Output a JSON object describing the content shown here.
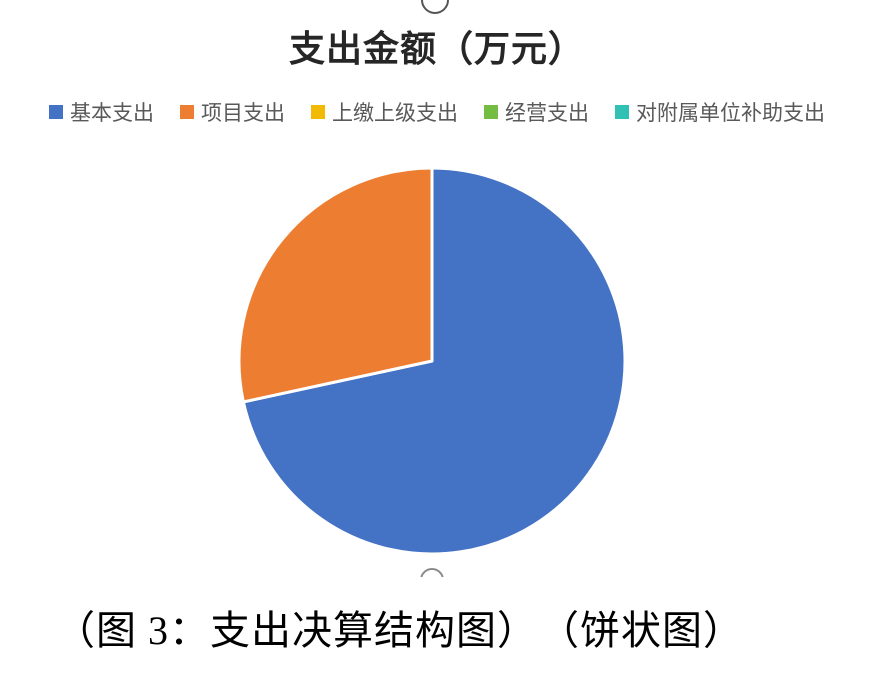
{
  "chart_data": {
    "type": "pie",
    "title": "支出金额（万元）",
    "categories": [
      "基本支出",
      "项目支出",
      "上缴上级支出",
      "经营支出",
      "对附属单位补助支出"
    ],
    "values": [
      71.6,
      28.4,
      0,
      0,
      0
    ],
    "values_note": "percent shares estimated from slice angles; no data labels shown",
    "colors": [
      "#4472C4",
      "#ED7D31",
      "#F2BA02",
      "#75BD42",
      "#30C0B4"
    ],
    "separator_color": "#FFFFFF",
    "start_angle_deg": 0,
    "direction": "clockwise",
    "legend_position": "top",
    "grid": false
  },
  "caption": "（图 3：支出决算结构图）　（饼状图）",
  "colors": {
    "background": "#FFFFFF",
    "title_text": "#262626",
    "legend_text": "#595959",
    "caption_text": "#000000",
    "handle_stroke_top": "#555555",
    "handle_stroke_bottom": "#8A8A8A"
  }
}
